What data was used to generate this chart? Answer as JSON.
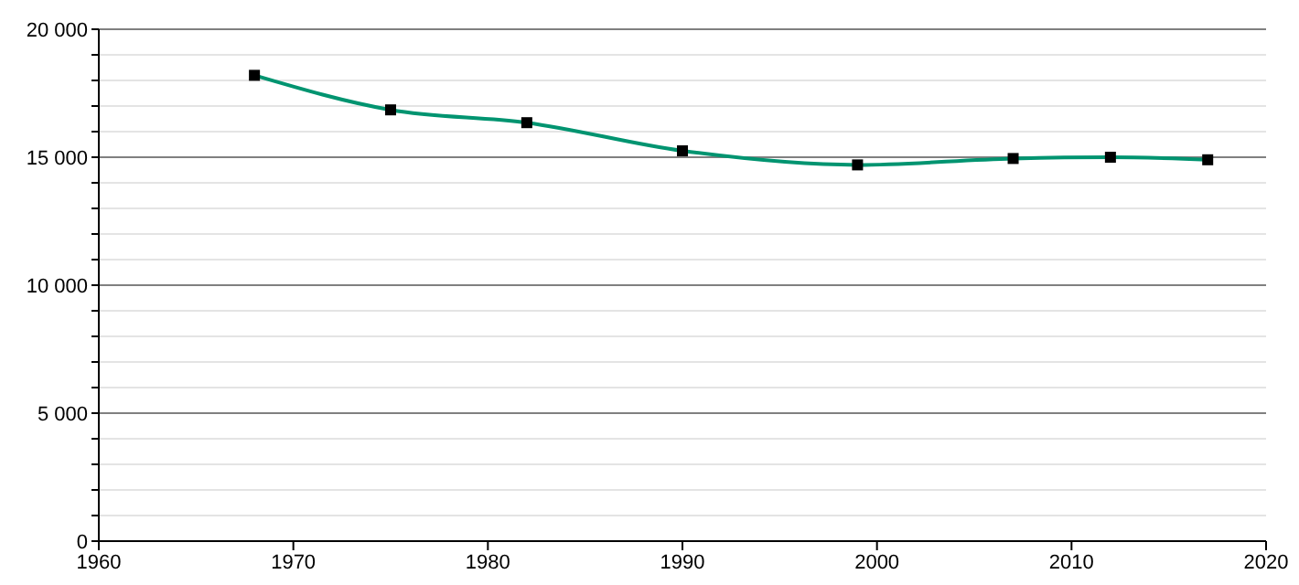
{
  "chart_data": {
    "type": "line",
    "x": [
      1968,
      1975,
      1982,
      1990,
      1999,
      2007,
      2012,
      2017
    ],
    "series": [
      {
        "color": "#009470",
        "values": [
          18200,
          16850,
          16350,
          15250,
          14700,
          14950,
          15000,
          14900
        ]
      }
    ],
    "xlim": [
      1960,
      2020
    ],
    "xticks": [
      1960,
      1970,
      1980,
      1990,
      2000,
      2010,
      2020
    ],
    "ylim": [
      0,
      20000
    ],
    "yticks": [
      {
        "value": 0,
        "label": "0"
      },
      {
        "value": 1000,
        "label": null
      },
      {
        "value": 2000,
        "label": null
      },
      {
        "value": 3000,
        "label": null
      },
      {
        "value": 4000,
        "label": null
      },
      {
        "value": 5000,
        "label": "5 000"
      },
      {
        "value": 6000,
        "label": null
      },
      {
        "value": 7000,
        "label": null
      },
      {
        "value": 8000,
        "label": null
      },
      {
        "value": 9000,
        "label": null
      },
      {
        "value": 10000,
        "label": "10 000"
      },
      {
        "value": 11000,
        "label": null
      },
      {
        "value": 12000,
        "label": null
      },
      {
        "value": 13000,
        "label": null
      },
      {
        "value": 14000,
        "label": null
      },
      {
        "value": 15000,
        "label": "15 000"
      },
      {
        "value": 16000,
        "label": null
      },
      {
        "value": 17000,
        "label": null
      },
      {
        "value": 18000,
        "label": null
      },
      {
        "value": 19000,
        "label": null
      },
      {
        "value": 20000,
        "label": "20 000"
      }
    ],
    "grid": "y",
    "marker": "square",
    "line_style": "solid"
  }
}
